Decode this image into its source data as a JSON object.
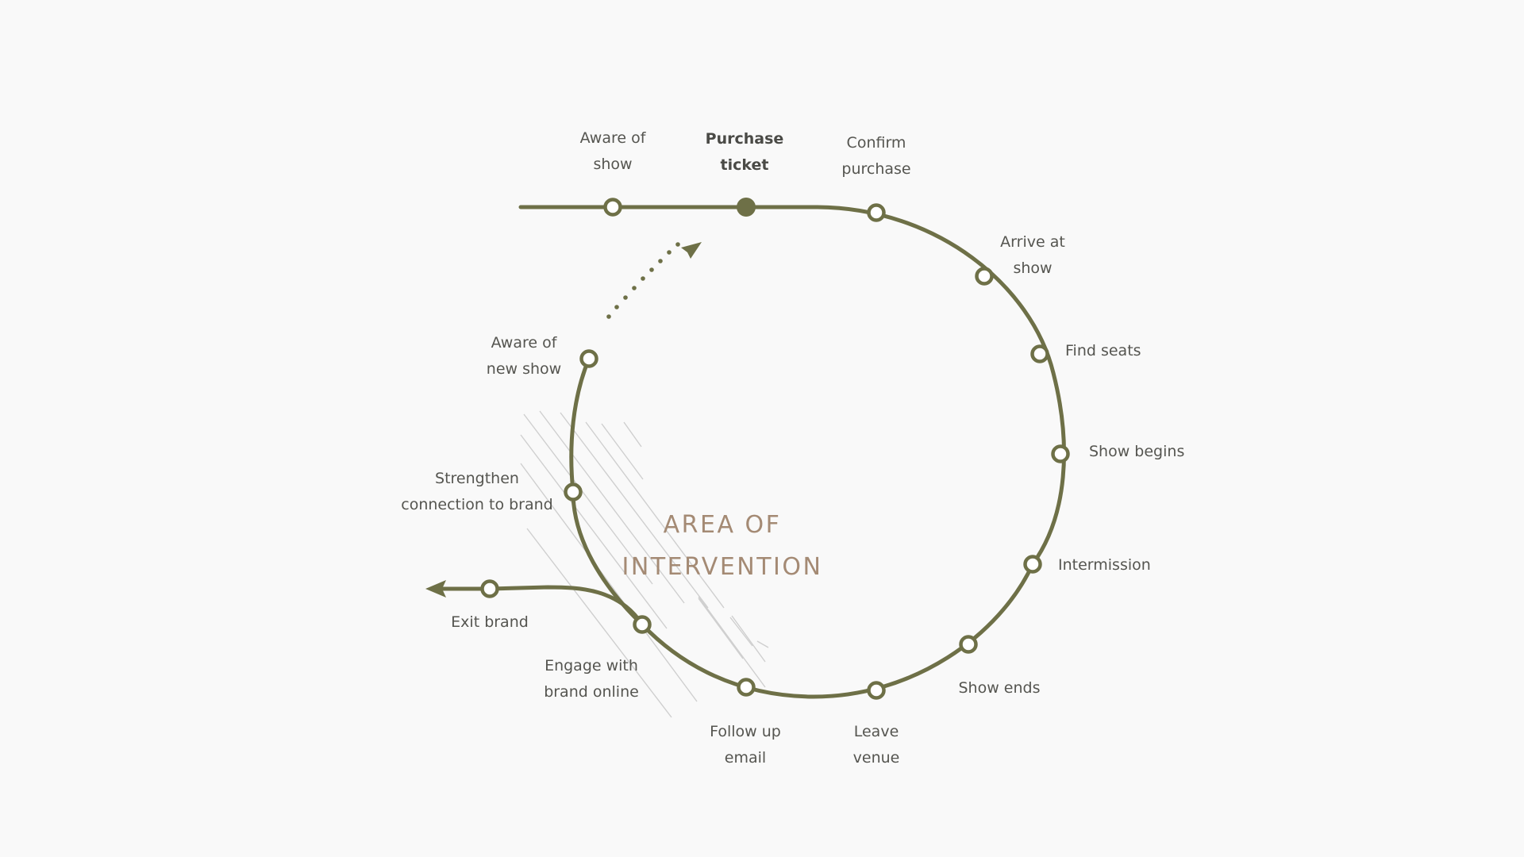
{
  "diagram": {
    "line_color": "#6e7047",
    "hatch_color": "#cfcfcf",
    "area_color": "#a48a74",
    "text_color": "#555550",
    "background": "#f9f9f9",
    "area_label_lines": [
      "AREA OF",
      "INTERVENTION"
    ],
    "stages": [
      {
        "id": "aware-of-show",
        "lines": [
          "Aware of",
          "show"
        ],
        "current": false
      },
      {
        "id": "purchase-ticket",
        "lines": [
          "Purchase",
          "ticket"
        ],
        "current": true
      },
      {
        "id": "confirm-purchase",
        "lines": [
          "Confirm",
          "purchase"
        ],
        "current": false
      },
      {
        "id": "arrive-at-show",
        "lines": [
          "Arrive at",
          "show"
        ],
        "current": false
      },
      {
        "id": "find-seats",
        "lines": [
          "Find seats"
        ],
        "current": false
      },
      {
        "id": "show-begins",
        "lines": [
          "Show begins"
        ],
        "current": false
      },
      {
        "id": "intermission",
        "lines": [
          "Intermission"
        ],
        "current": false
      },
      {
        "id": "show-ends",
        "lines": [
          "Show ends"
        ],
        "current": false
      },
      {
        "id": "leave-venue",
        "lines": [
          "Leave",
          "venue"
        ],
        "current": false
      },
      {
        "id": "follow-up-email",
        "lines": [
          "Follow up",
          "email"
        ],
        "current": false
      },
      {
        "id": "engage-with-brand-online",
        "lines": [
          "Engage with",
          "brand online"
        ],
        "current": false
      },
      {
        "id": "exit-brand",
        "lines": [
          "Exit brand"
        ],
        "current": false
      },
      {
        "id": "strengthen-connection",
        "lines": [
          "Strengthen",
          "connection to brand"
        ],
        "current": false
      },
      {
        "id": "aware-of-new-show",
        "lines": [
          "Aware of",
          "new show"
        ],
        "current": false
      }
    ]
  }
}
